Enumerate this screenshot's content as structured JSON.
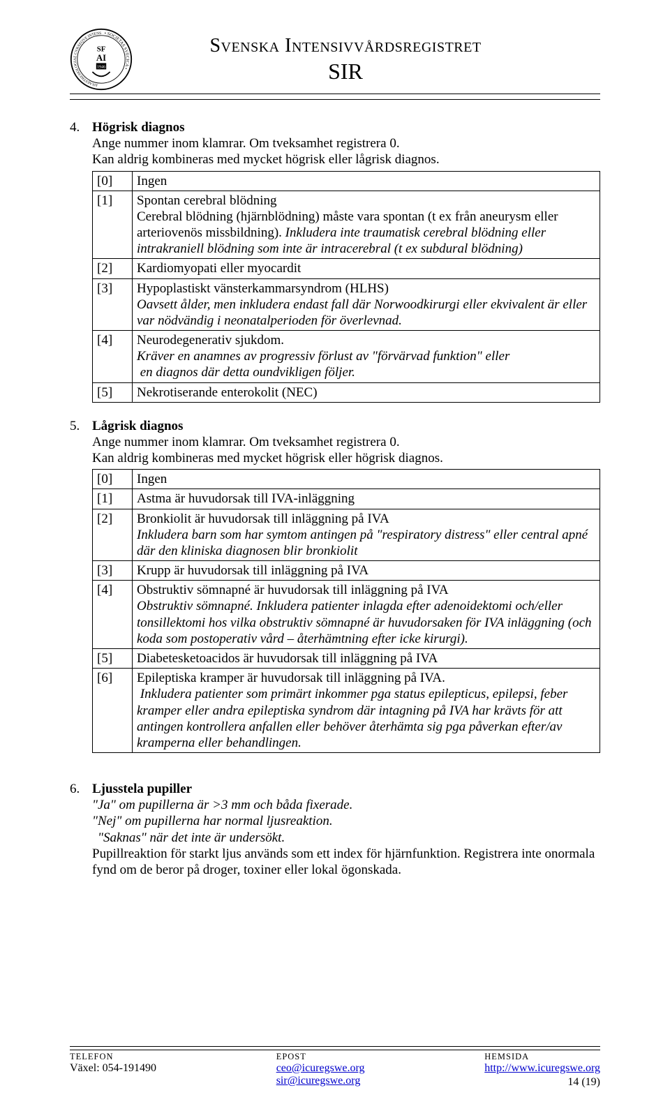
{
  "header": {
    "org_name": "Svenska Intensivvårdsregistret",
    "org_abbr": "SIR"
  },
  "section4": {
    "num": "4.",
    "title": "Högrisk diagnos",
    "sub1": "Ange nummer inom klamrar. Om tveksamhet registrera 0.",
    "sub2": "Kan aldrig kombineras med mycket högrisk eller lågrisk diagnos.",
    "rows": [
      {
        "code": "[0]",
        "text": "Ingen"
      },
      {
        "code": "[1]",
        "html": "Spontan cerebral blödning<br>Cerebral blödning (hjärnblödning) måste vara spontan (t ex från aneurysm eller arteriovenös missbildning). <span class=\"italic\">Inkludera inte traumatisk cerebral blödning eller intrakraniell blödning som inte är intracerebral (t ex subdural blödning)</span>"
      },
      {
        "code": "[2]",
        "text": "Kardiomyopati eller myocardit"
      },
      {
        "code": "[3]",
        "html": "Hypoplastiskt vänsterkammarsyndrom (HLHS)<br><span class=\"italic\">Oavsett ålder, men inkludera endast fall där Norwoodkirurgi eller ekvivalent är eller var nödvändig i neonatalperioden för överlevnad.</span>"
      },
      {
        "code": "[4]",
        "html": "Neurodegenerativ sjukdom.<br><span class=\"italic\">Kräver en anamnes av progressiv förlust av \"förvärvad funktion\" eller<br>&nbsp;en diagnos där detta oundvikligen följer.</span>"
      },
      {
        "code": "[5]",
        "text": "Nekrotiserande enterokolit (NEC)"
      }
    ]
  },
  "section5": {
    "num": "5.",
    "title": "Lågrisk diagnos",
    "sub1": "Ange nummer inom klamrar. Om tveksamhet registrera 0.",
    "sub2": "Kan aldrig kombineras med mycket högrisk eller högrisk diagnos.",
    "rows": [
      {
        "code": "[0]",
        "text": "Ingen"
      },
      {
        "code": "[1]",
        "text": "Astma är huvudorsak till IVA-inläggning"
      },
      {
        "code": "[2]",
        "html": "Bronkiolit är huvudorsak till inläggning på IVA<br><span class=\"italic\">Inkludera barn som har symtom antingen på \"respiratory distress\" eller central apné där den kliniska diagnosen blir bronkiolit</span>"
      },
      {
        "code": "[3]",
        "text": "Krupp är huvudorsak till inläggning på IVA"
      },
      {
        "code": "[4]",
        "html": "Obstruktiv sömnapné är huvudorsak till inläggning på IVA<br><span class=\"italic\">Obstruktiv sömnapné. Inkludera patienter inlagda efter adenoidektomi och/eller tonsillektomi hos vilka obstruktiv sömnapné är huvudorsaken för IVA inläggning (och koda som postoperativ vård – återhämtning efter icke kirurgi).</span>"
      },
      {
        "code": "[5]",
        "text": "Diabetesketoacidos är huvudorsak till inläggning på IVA"
      },
      {
        "code": "[6]",
        "html": "Epileptiska kramper är huvudorsak till inläggning på IVA.<br><span class=\"italic\">&nbsp;Inkludera patienter som primärt inkommer pga status epilepticus, epilepsi, feber kramper eller andra epileptiska syndrom där intagning på IVA har krävts för att antingen kontrollera anfallen eller behöver återhämta sig pga påverkan efter/av kramperna eller behandlingen.</span>"
      }
    ]
  },
  "section6": {
    "num": "6.",
    "title": "Ljusstela pupiller",
    "l1": "\"Ja\" om pupillerna är >3 mm och båda fixerade.",
    "l2": "\"Nej\" om pupillerna har normal ljusreaktion.",
    "l3": "\"Saknas\" när det inte är undersökt.",
    "l4": "Pupillreaktion för starkt ljus används som ett index för hjärnfunktion. Registrera inte onormala fynd om de beror på droger, toxiner eller lokal ögonskada."
  },
  "footer": {
    "tel_label": "TELEFON",
    "tel_val": "Växel: 054-191490",
    "epost_label": "EPOST",
    "epost_val1": "ceo@icuregswe.org",
    "epost_val2": "sir@icuregswe.org",
    "hem_label": "HEMSIDA",
    "hem_val": "http://www.icuregswe.org",
    "page_num": "14 (19)"
  }
}
